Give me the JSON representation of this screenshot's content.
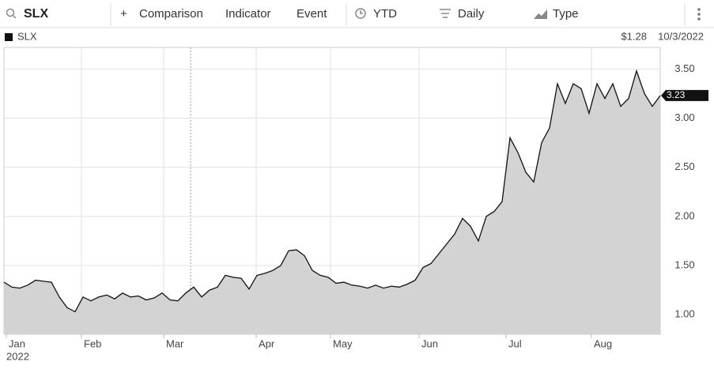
{
  "toolbar": {
    "search": "SLX",
    "buttons": [
      "Comparison",
      "Indicator",
      "Event",
      "YTD",
      "Daily",
      "Type"
    ]
  },
  "chart_data": {
    "type": "area",
    "symbol": "SLX",
    "change": "$1.28",
    "date": "10/3/2022",
    "year": "2022",
    "xlim": [
      0,
      83
    ],
    "xticks": [
      {
        "value": 0.3,
        "label": "Jan"
      },
      {
        "value": 9.8,
        "label": "Feb"
      },
      {
        "value": 20.2,
        "label": "Mar"
      },
      {
        "value": 31.9,
        "label": "Apr"
      },
      {
        "value": 41.3,
        "label": "May"
      },
      {
        "value": 52.5,
        "label": "Jun"
      },
      {
        "value": 63.5,
        "label": "Jul"
      },
      {
        "value": 74.3,
        "label": "Aug"
      }
    ],
    "ylim": [
      0.8,
      3.72
    ],
    "yticks": [
      {
        "value": 1,
        "label": "1.00"
      },
      {
        "value": 1.5,
        "label": "1.50"
      },
      {
        "value": 2,
        "label": "2.00"
      },
      {
        "value": 2.5,
        "label": "2.50"
      },
      {
        "value": 3,
        "label": "3.00"
      },
      {
        "value": 3.5,
        "label": "3.50"
      }
    ],
    "grid": true,
    "series": [
      {
        "name": "SLX",
        "color": "#111111",
        "fill": "#d3d3d3",
        "values": [
          1.33,
          1.28,
          1.27,
          1.3,
          1.35,
          1.34,
          1.33,
          1.18,
          1.07,
          1.03,
          1.18,
          1.14,
          1.18,
          1.2,
          1.16,
          1.22,
          1.18,
          1.19,
          1.15,
          1.17,
          1.22,
          1.15,
          1.14,
          1.22,
          1.28,
          1.18,
          1.25,
          1.28,
          1.4,
          1.38,
          1.37,
          1.26,
          1.4,
          1.42,
          1.45,
          1.5,
          1.65,
          1.66,
          1.6,
          1.45,
          1.4,
          1.38,
          1.32,
          1.33,
          1.3,
          1.29,
          1.27,
          1.3,
          1.27,
          1.29,
          1.28,
          1.31,
          1.35,
          1.48,
          1.52,
          1.62,
          1.72,
          1.82,
          1.98,
          1.9,
          1.75,
          2.0,
          2.05,
          2.15,
          2.8,
          2.65,
          2.45,
          2.35,
          2.75,
          2.9,
          3.35,
          3.15,
          3.35,
          3.3,
          3.05,
          3.35,
          3.2,
          3.35,
          3.12,
          3.2,
          3.48,
          3.25,
          3.12,
          3.23
        ]
      }
    ]
  }
}
